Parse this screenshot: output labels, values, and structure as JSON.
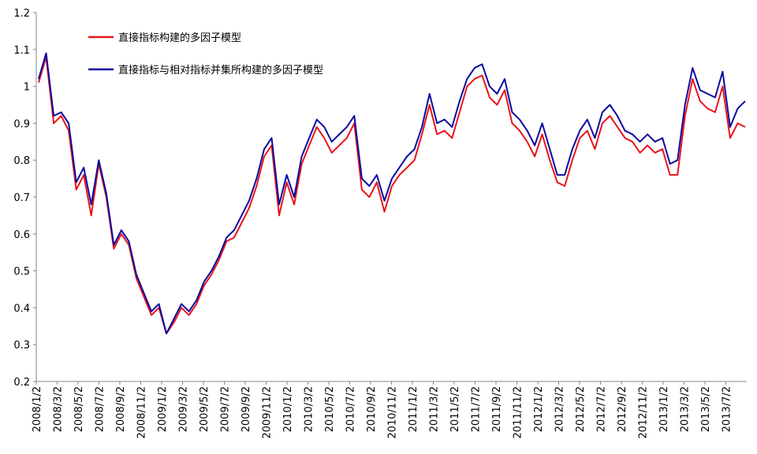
{
  "chart_data": {
    "type": "line",
    "title": "",
    "xlabel": "",
    "ylabel": "",
    "ylim": [
      0.2,
      1.2
    ],
    "yticks": [
      "0.2",
      "0.3",
      "0.4",
      "0.5",
      "0.6",
      "0.7",
      "0.8",
      "0.9",
      "1",
      "1.1",
      "1.2"
    ],
    "xticks": [
      "2008/1/2",
      "2008/3/2",
      "2008/5/2",
      "2008/7/2",
      "2008/9/2",
      "2008/11/2",
      "2009/1/2",
      "2009/3/2",
      "2009/5/2",
      "2009/7/2",
      "2009/9/2",
      "2009/11/2",
      "2010/1/2",
      "2010/3/2",
      "2010/5/2",
      "2010/7/2",
      "2010/9/2",
      "2010/11/2",
      "2011/1/2",
      "2011/3/2",
      "2011/5/2",
      "2011/7/2",
      "2011/9/2",
      "2011/11/2",
      "2012/1/2",
      "2012/3/2",
      "2012/5/2",
      "2012/7/2",
      "2012/9/2",
      "2012/11/2",
      "2013/1/2",
      "2013/3/2",
      "2013/5/2",
      "2013/7/2"
    ],
    "grid": false,
    "legend": "top-left",
    "series": [
      {
        "name": "直接指标构建的多因子模型",
        "color": "#e8141b",
        "values": [
          1.01,
          1.08,
          0.9,
          0.92,
          0.88,
          0.72,
          0.76,
          0.65,
          0.79,
          0.7,
          0.56,
          0.6,
          0.57,
          0.48,
          0.43,
          0.38,
          0.4,
          0.33,
          0.36,
          0.4,
          0.38,
          0.41,
          0.46,
          0.49,
          0.53,
          0.58,
          0.59,
          0.63,
          0.67,
          0.73,
          0.81,
          0.84,
          0.65,
          0.74,
          0.68,
          0.79,
          0.84,
          0.89,
          0.86,
          0.82,
          0.84,
          0.86,
          0.9,
          0.72,
          0.7,
          0.74,
          0.66,
          0.73,
          0.76,
          0.78,
          0.8,
          0.87,
          0.95,
          0.87,
          0.88,
          0.86,
          0.93,
          1.0,
          1.02,
          1.03,
          0.97,
          0.95,
          0.99,
          0.9,
          0.88,
          0.85,
          0.81,
          0.87,
          0.8,
          0.74,
          0.73,
          0.8,
          0.86,
          0.88,
          0.83,
          0.9,
          0.92,
          0.89,
          0.86,
          0.85,
          0.82,
          0.84,
          0.82,
          0.83,
          0.76,
          0.76,
          0.92,
          1.02,
          0.96,
          0.94,
          0.93,
          1.0,
          0.86,
          0.9,
          0.89
        ]
      },
      {
        "name": "直接指标与相对指标并集所构建的多因子模型",
        "color": "#0a0aa0",
        "values": [
          1.02,
          1.09,
          0.92,
          0.93,
          0.9,
          0.74,
          0.78,
          0.68,
          0.8,
          0.71,
          0.57,
          0.61,
          0.58,
          0.49,
          0.44,
          0.39,
          0.41,
          0.33,
          0.37,
          0.41,
          0.39,
          0.42,
          0.47,
          0.5,
          0.54,
          0.59,
          0.61,
          0.65,
          0.69,
          0.75,
          0.83,
          0.86,
          0.68,
          0.76,
          0.7,
          0.81,
          0.86,
          0.91,
          0.89,
          0.85,
          0.87,
          0.89,
          0.92,
          0.75,
          0.73,
          0.76,
          0.69,
          0.75,
          0.78,
          0.81,
          0.83,
          0.89,
          0.98,
          0.9,
          0.91,
          0.89,
          0.96,
          1.02,
          1.05,
          1.06,
          1.0,
          0.98,
          1.02,
          0.93,
          0.91,
          0.88,
          0.84,
          0.9,
          0.83,
          0.76,
          0.76,
          0.83,
          0.88,
          0.91,
          0.86,
          0.93,
          0.95,
          0.92,
          0.88,
          0.87,
          0.85,
          0.87,
          0.85,
          0.86,
          0.79,
          0.8,
          0.95,
          1.05,
          0.99,
          0.98,
          0.97,
          1.04,
          0.89,
          0.94,
          0.96
        ]
      }
    ]
  }
}
